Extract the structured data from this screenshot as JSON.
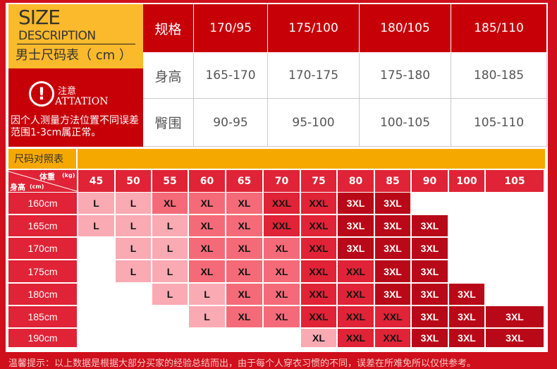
{
  "header": {
    "size": "SIZE",
    "description": "DESCRIPTION",
    "chart_title": "男士尺码表（ cm ）"
  },
  "notice": {
    "icon": "exclamation-circle-icon",
    "title": "注意",
    "subtitle": "ATTATION",
    "text": "因个人测量方法位置不同误差范围1-3cm属正常。"
  },
  "spec_table": {
    "header": [
      "规格",
      "170/95",
      "175/100",
      "180/105",
      "185/110"
    ],
    "rows": [
      [
        "身高",
        "165-170",
        "170-175",
        "175-180",
        "180-185"
      ],
      [
        "臀围",
        "90-95",
        "95-100",
        "100-105",
        "105-110"
      ]
    ]
  },
  "lookup": {
    "title": "尺码对照表",
    "weight_label": "体重",
    "weight_unit": "(kg)",
    "height_label": "身高",
    "height_unit": "(cm)",
    "weights": [
      "45",
      "50",
      "55",
      "60",
      "65",
      "70",
      "75",
      "80",
      "85",
      "90",
      "100",
      "105"
    ],
    "rows": [
      {
        "height": "160cm",
        "cells": [
          "L",
          "L",
          "XL",
          "XL",
          "XL",
          "XXL",
          "XXL",
          "3XL",
          "3XL",
          "",
          "",
          ""
        ]
      },
      {
        "height": "165cm",
        "cells": [
          "L",
          "L",
          "L",
          "XL",
          "XL",
          "XXL",
          "XXL",
          "3XL",
          "3XL",
          "3XL",
          "",
          ""
        ]
      },
      {
        "height": "170cm",
        "cells": [
          "",
          "L",
          "L",
          "XL",
          "XL",
          "XL",
          "XXL",
          "3XL",
          "3XL",
          "3XL",
          "",
          ""
        ]
      },
      {
        "height": "175cm",
        "cells": [
          "",
          "L",
          "L",
          "XL",
          "XL",
          "XL",
          "XXL",
          "XXL",
          "3XL",
          "3XL",
          "",
          ""
        ]
      },
      {
        "height": "180cm",
        "cells": [
          "",
          "",
          "L",
          "L",
          "XL",
          "XL",
          "XXL",
          "XXL",
          "3XL",
          "3XL",
          "3XL",
          ""
        ]
      },
      {
        "height": "185cm",
        "cells": [
          "",
          "",
          "",
          "L",
          "XL",
          "XL",
          "XXL",
          "XXL",
          "XXL",
          "3XL",
          "3XL",
          "3XL"
        ]
      },
      {
        "height": "190cm",
        "cells": [
          "",
          "",
          "",
          "",
          "",
          "",
          "XL",
          "XXL",
          "XXL",
          "3XL",
          "3XL",
          "3XL"
        ]
      }
    ]
  },
  "colors": {
    "L": "#f9aab3",
    "XL": "#f56a78",
    "XXL": "#e02336",
    "3XL": "#b90818",
    "190cm-XL": "#f9aab3"
  },
  "footer": "温馨提示：以上数据是根据大部分买家的经验总结而出，由于每个人穿衣习惯的不同，误差在所难免所以仅供参考。"
}
